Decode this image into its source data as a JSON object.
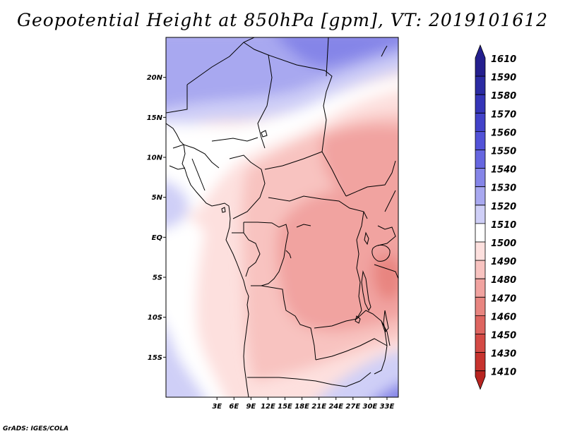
{
  "title": "Geopotential Height at 850hPa [gpm], VT: 2019101612",
  "footer": "GrADS: IGES/COLA",
  "map": {
    "lon_range": [
      -6,
      35
    ],
    "lat_range": [
      -20,
      25
    ],
    "lon_ticks": [
      "3E",
      "6E",
      "9E",
      "12E",
      "15E",
      "18E",
      "21E",
      "24E",
      "27E",
      "30E",
      "33E"
    ],
    "lat_ticks": [
      "20N",
      "15N",
      "10N",
      "5N",
      "EQ",
      "5S",
      "10S",
      "15S"
    ]
  },
  "colorbar": {
    "labels": [
      "1610",
      "1590",
      "1580",
      "1570",
      "1560",
      "1550",
      "1540",
      "1530",
      "1520",
      "1510",
      "1500",
      "1490",
      "1480",
      "1470",
      "1460",
      "1450",
      "1430",
      "1410"
    ],
    "colors": [
      "#241f8e",
      "#2b2ba3",
      "#3535b8",
      "#4242c9",
      "#5252d8",
      "#6666e0",
      "#8585e8",
      "#a8a8f0",
      "#cfcff7",
      "#ffffff",
      "#fde0de",
      "#f8c3c0",
      "#f1a3a0",
      "#e88580",
      "#de6560",
      "#d44a45",
      "#c7332e",
      "#b82420"
    ]
  }
}
